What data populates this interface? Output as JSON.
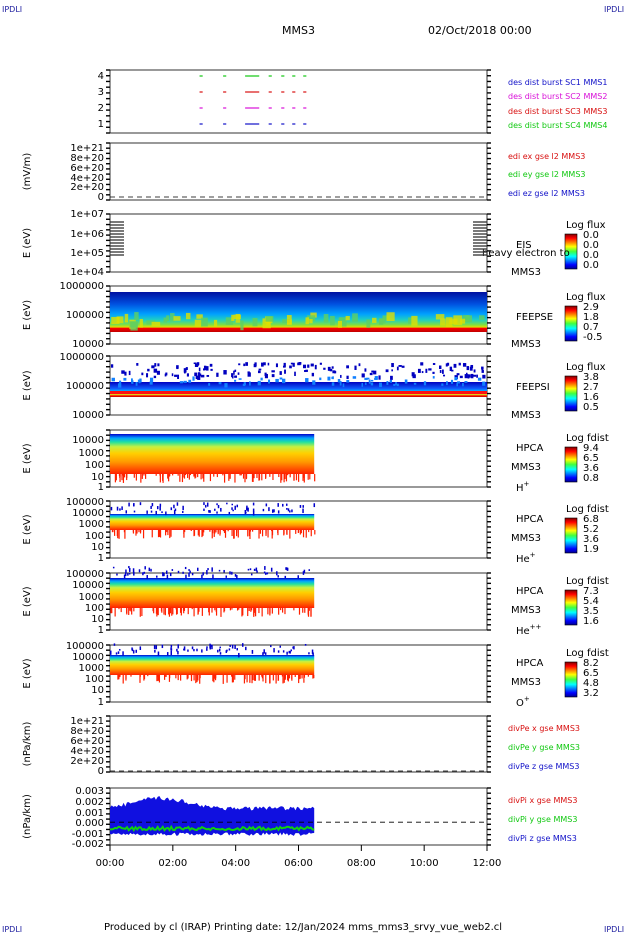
{
  "header": {
    "corner_tl": "IPDLI",
    "corner_tr": "IPDLI",
    "corner_bl": "IPDLI",
    "corner_br": "IPDLI",
    "spacecraft": "MMS3",
    "date": "02/Oct/2018 00:00"
  },
  "footer": {
    "text": "Produced by cl (IRAP)   Printing date: 12/Jan/2024   mms_mms3_srvy_vue_web2.cl"
  },
  "colors": {
    "mms1": "#1010c8",
    "mms2": "#d810d8",
    "mms3": "#d81010",
    "mms4": "#10c810"
  },
  "chart_data": [
    {
      "id": "p1",
      "type": "line",
      "yticks": [
        "4",
        "3",
        "2",
        "1"
      ],
      "legend": [
        "des dist burst SC1 MMS1",
        "des dist burst SC2 MMS2",
        "des dist burst SC3 MMS3",
        "des dist burst SC4 MMS4"
      ],
      "legend_colors": [
        "#1010c8",
        "#d810d8",
        "#d81010",
        "#10c810"
      ],
      "segments_hours": [
        [
          2.85,
          2.95
        ],
        [
          3.6,
          3.7
        ],
        [
          4.3,
          4.75
        ],
        [
          5.05,
          5.15
        ],
        [
          5.45,
          5.55
        ],
        [
          5.8,
          5.9
        ],
        [
          6.15,
          6.25
        ]
      ]
    },
    {
      "id": "p2",
      "type": "line",
      "ylabel": "(mV/m)",
      "yticks": [
        "1e+21",
        "8e+20",
        "6e+20",
        "4e+20",
        "2e+20",
        "0"
      ],
      "legend": [
        "edi ex gse l2 MMS3",
        "edi ey gse l2 MMS3",
        "edi ez gse l2 MMS3"
      ],
      "legend_colors": [
        "#d81010",
        "#10c810",
        "#1010c8"
      ]
    },
    {
      "id": "p3",
      "type": "heatmap",
      "ylabel": "E (eV)",
      "yticks": [
        "1e+07",
        "1e+06",
        "1e+05",
        "1e+04"
      ],
      "instrument": "EIS",
      "spacecraft": "MMS3",
      "overlay": "heavy electron to",
      "cbar_title": "Log flux",
      "cbar_ticks": [
        "0.0",
        "0.0",
        "0.0",
        "0.0"
      ]
    },
    {
      "id": "p4",
      "type": "heatmap",
      "ylabel": "E (eV)",
      "yticks": [
        "1000000",
        "100000",
        "10000"
      ],
      "instrument": "FEEPSE",
      "spacecraft": "MMS3",
      "cbar_title": "Log flux",
      "cbar_ticks": [
        "2.9",
        "1.8",
        "0.7",
        "-0.5"
      ],
      "data_hours": [
        0,
        12
      ]
    },
    {
      "id": "p5",
      "type": "heatmap",
      "ylabel": "E (eV)",
      "yticks": [
        "1000000",
        "100000",
        "10000"
      ],
      "instrument": "FEEPSI",
      "spacecraft": "MMS3",
      "cbar_title": "Log flux",
      "cbar_ticks": [
        "3.8",
        "2.7",
        "1.6",
        "0.5"
      ],
      "data_hours": [
        0,
        12
      ]
    },
    {
      "id": "p6",
      "type": "heatmap",
      "ylabel": "E (eV)",
      "yticks": [
        "10000",
        "1000",
        "100",
        "10",
        "1"
      ],
      "instrument": "HPCA",
      "spacecraft": "MMS3",
      "species": "H",
      "species_sup": "+",
      "cbar_title": "Log fdist",
      "cbar_ticks": [
        "9.4",
        "6.5",
        "3.6",
        "0.8"
      ],
      "data_hours": [
        0,
        6.5
      ]
    },
    {
      "id": "p7",
      "type": "heatmap",
      "ylabel": "E (eV)",
      "yticks": [
        "100000",
        "10000",
        "1000",
        "100",
        "10",
        "1"
      ],
      "instrument": "HPCA",
      "spacecraft": "MMS3",
      "species": "He",
      "species_sup": "+",
      "cbar_title": "Log fdist",
      "cbar_ticks": [
        "6.8",
        "5.2",
        "3.6",
        "1.9"
      ],
      "data_hours": [
        0,
        6.5
      ]
    },
    {
      "id": "p8",
      "type": "heatmap",
      "ylabel": "E (eV)",
      "yticks": [
        "100000",
        "10000",
        "1000",
        "100",
        "10",
        "1"
      ],
      "instrument": "HPCA",
      "spacecraft": "MMS3",
      "species": "He",
      "species_sup": "++",
      "cbar_title": "Log fdist",
      "cbar_ticks": [
        "7.3",
        "5.4",
        "3.5",
        "1.6"
      ],
      "data_hours": [
        0,
        6.5
      ]
    },
    {
      "id": "p9",
      "type": "heatmap",
      "ylabel": "E (eV)",
      "yticks": [
        "100000",
        "10000",
        "1000",
        "100",
        "10",
        "1"
      ],
      "instrument": "HPCA",
      "spacecraft": "MMS3",
      "species": "O",
      "species_sup": "+",
      "cbar_title": "Log fdist",
      "cbar_ticks": [
        "8.2",
        "6.5",
        "4.8",
        "3.2"
      ],
      "data_hours": [
        0,
        6.5
      ]
    },
    {
      "id": "p10",
      "type": "line",
      "ylabel": "(nPa/km)",
      "yticks": [
        "1e+21",
        "8e+20",
        "6e+20",
        "4e+20",
        "2e+20",
        "0"
      ],
      "legend": [
        "divPe x gse MMS3",
        "divPe y gse MMS3",
        "divPe z gse MMS3"
      ],
      "legend_colors": [
        "#d81010",
        "#10c810",
        "#1010c8"
      ]
    },
    {
      "id": "p11",
      "type": "line",
      "ylabel": "(nPa/km)",
      "yticks": [
        "0.003",
        "0.002",
        "0.001",
        "0.000",
        "-0.001",
        "-0.002"
      ],
      "legend": [
        "divPi x gse MMS3",
        "divPi y gse MMS3",
        "divPi z gse MMS3"
      ],
      "legend_colors": [
        "#d81010",
        "#10c810",
        "#1010c8"
      ],
      "ylim": [
        -0.002,
        0.003
      ],
      "data_hours": [
        0,
        6.5
      ]
    }
  ],
  "x_axis": {
    "ticks": [
      "00:00",
      "02:00",
      "04:00",
      "06:00",
      "08:00",
      "10:00",
      "12:00"
    ],
    "range_hours": [
      0,
      12
    ]
  }
}
